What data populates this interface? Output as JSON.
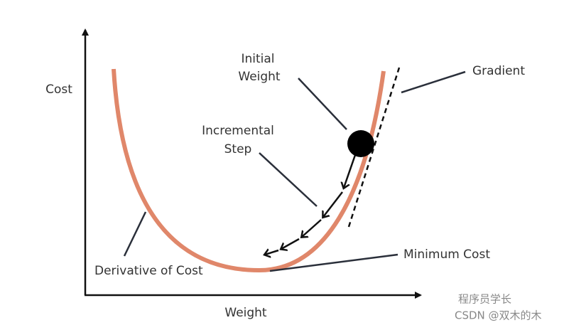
{
  "axes": {
    "y_label": "Cost",
    "x_label": "Weight"
  },
  "labels": {
    "initial_weight": [
      "Initial",
      "Weight"
    ],
    "gradient": "Gradient",
    "incremental_step": [
      "Incremental",
      "Step"
    ],
    "derivative_of_cost": "Derivative of Cost",
    "minimum_cost": "Minimum Cost"
  },
  "watermark": [
    "程序员学长",
    "CSDN @双木的木"
  ]
}
